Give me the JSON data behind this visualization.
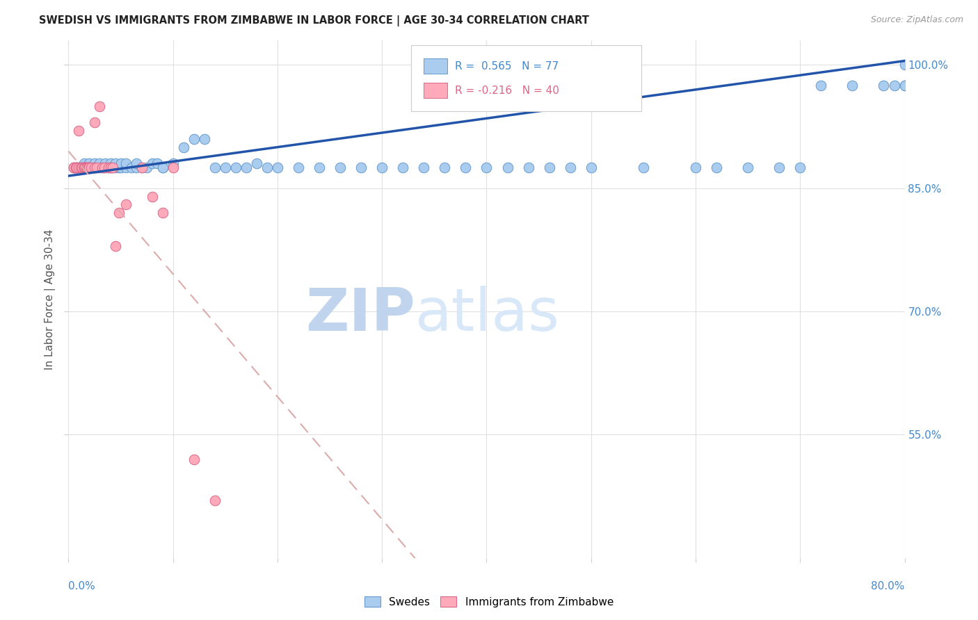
{
  "title": "SWEDISH VS IMMIGRANTS FROM ZIMBABWE IN LABOR FORCE | AGE 30-34 CORRELATION CHART",
  "source": "Source: ZipAtlas.com",
  "ylabel": "In Labor Force | Age 30-34",
  "legend_swedes": "Swedes",
  "legend_immigrants": "Immigrants from Zimbabwe",
  "R_swedes": 0.565,
  "N_swedes": 77,
  "R_immigrants": -0.216,
  "N_immigrants": 40,
  "watermark_zip": "ZIP",
  "watermark_atlas": "atlas",
  "x_min": 0.0,
  "x_max": 0.8,
  "y_min": 0.4,
  "y_max": 1.03,
  "blue_scatter_x": [
    0.005,
    0.008,
    0.01,
    0.012,
    0.015,
    0.015,
    0.018,
    0.02,
    0.02,
    0.022,
    0.025,
    0.025,
    0.028,
    0.03,
    0.03,
    0.032,
    0.035,
    0.035,
    0.038,
    0.04,
    0.04,
    0.042,
    0.045,
    0.045,
    0.048,
    0.05,
    0.05,
    0.055,
    0.055,
    0.06,
    0.065,
    0.065,
    0.07,
    0.075,
    0.08,
    0.085,
    0.09,
    0.09,
    0.1,
    0.11,
    0.12,
    0.13,
    0.14,
    0.15,
    0.16,
    0.17,
    0.18,
    0.19,
    0.2,
    0.22,
    0.24,
    0.26,
    0.28,
    0.3,
    0.32,
    0.34,
    0.36,
    0.38,
    0.4,
    0.42,
    0.44,
    0.46,
    0.48,
    0.5,
    0.55,
    0.6,
    0.62,
    0.65,
    0.68,
    0.7,
    0.72,
    0.75,
    0.78,
    0.79,
    0.8,
    0.8,
    0.8
  ],
  "blue_scatter_y": [
    0.875,
    0.875,
    0.875,
    0.875,
    0.875,
    0.88,
    0.875,
    0.875,
    0.88,
    0.875,
    0.875,
    0.88,
    0.875,
    0.875,
    0.88,
    0.875,
    0.875,
    0.88,
    0.875,
    0.875,
    0.88,
    0.875,
    0.875,
    0.88,
    0.875,
    0.875,
    0.88,
    0.875,
    0.88,
    0.875,
    0.875,
    0.88,
    0.875,
    0.875,
    0.88,
    0.88,
    0.875,
    0.875,
    0.88,
    0.9,
    0.91,
    0.91,
    0.875,
    0.875,
    0.875,
    0.875,
    0.88,
    0.875,
    0.875,
    0.875,
    0.875,
    0.875,
    0.875,
    0.875,
    0.875,
    0.875,
    0.875,
    0.875,
    0.875,
    0.875,
    0.875,
    0.875,
    0.875,
    0.875,
    0.875,
    0.875,
    0.875,
    0.875,
    0.875,
    0.875,
    0.975,
    0.975,
    0.975,
    0.975,
    0.975,
    0.975,
    1.0
  ],
  "pink_scatter_x": [
    0.005,
    0.005,
    0.007,
    0.008,
    0.008,
    0.01,
    0.01,
    0.012,
    0.013,
    0.013,
    0.015,
    0.015,
    0.015,
    0.015,
    0.016,
    0.017,
    0.018,
    0.018,
    0.019,
    0.02,
    0.02,
    0.022,
    0.025,
    0.025,
    0.027,
    0.03,
    0.032,
    0.034,
    0.038,
    0.04,
    0.042,
    0.045,
    0.048,
    0.055,
    0.07,
    0.08,
    0.09,
    0.1,
    0.12,
    0.14
  ],
  "pink_scatter_y": [
    0.875,
    0.875,
    0.875,
    0.875,
    0.875,
    0.875,
    0.92,
    0.875,
    0.875,
    0.875,
    0.875,
    0.875,
    0.875,
    0.875,
    0.875,
    0.875,
    0.875,
    0.875,
    0.875,
    0.875,
    0.875,
    0.875,
    0.875,
    0.93,
    0.875,
    0.95,
    0.875,
    0.875,
    0.875,
    0.875,
    0.875,
    0.78,
    0.82,
    0.83,
    0.875,
    0.84,
    0.82,
    0.875,
    0.52,
    0.47
  ],
  "blue_color": "#aaccee",
  "blue_edge_color": "#6699cc",
  "pink_color": "#ffaabb",
  "pink_edge_color": "#dd6688",
  "trend_blue_color": "#2255aa",
  "trend_pink_color": "#ee3366",
  "axis_label_color": "#4488cc",
  "grid_color": "#e0e0e0",
  "title_color": "#222222",
  "watermark_color_zip": "#c0d4ee",
  "watermark_color_atlas": "#d8e8f8"
}
